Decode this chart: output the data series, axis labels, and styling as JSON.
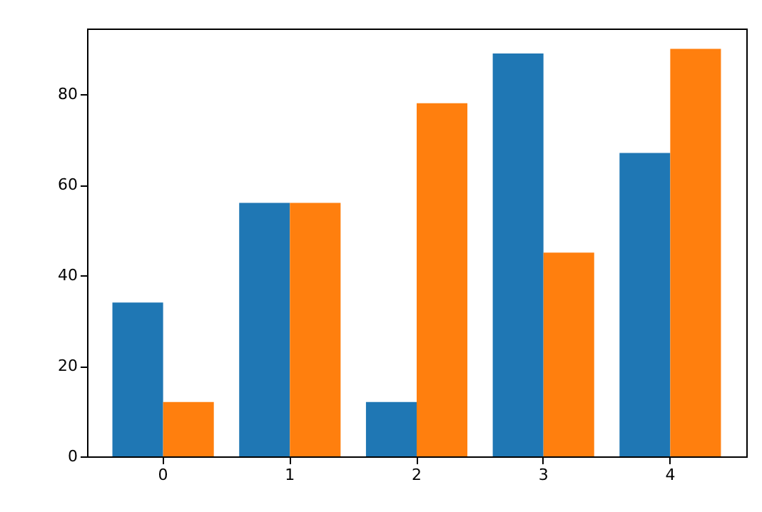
{
  "chart_data": {
    "type": "bar",
    "categories": [
      "0",
      "1",
      "2",
      "3",
      "4"
    ],
    "series": [
      {
        "color": "#1f77b4",
        "values": [
          34,
          56,
          12,
          89,
          67
        ]
      },
      {
        "color": "#ff7f0e",
        "values": [
          12,
          56,
          78,
          45,
          90
        ]
      }
    ],
    "ylim": [
      0,
      94.5
    ],
    "yticks": [
      0,
      20,
      40,
      60,
      80
    ],
    "grid": false,
    "legend": false
  }
}
